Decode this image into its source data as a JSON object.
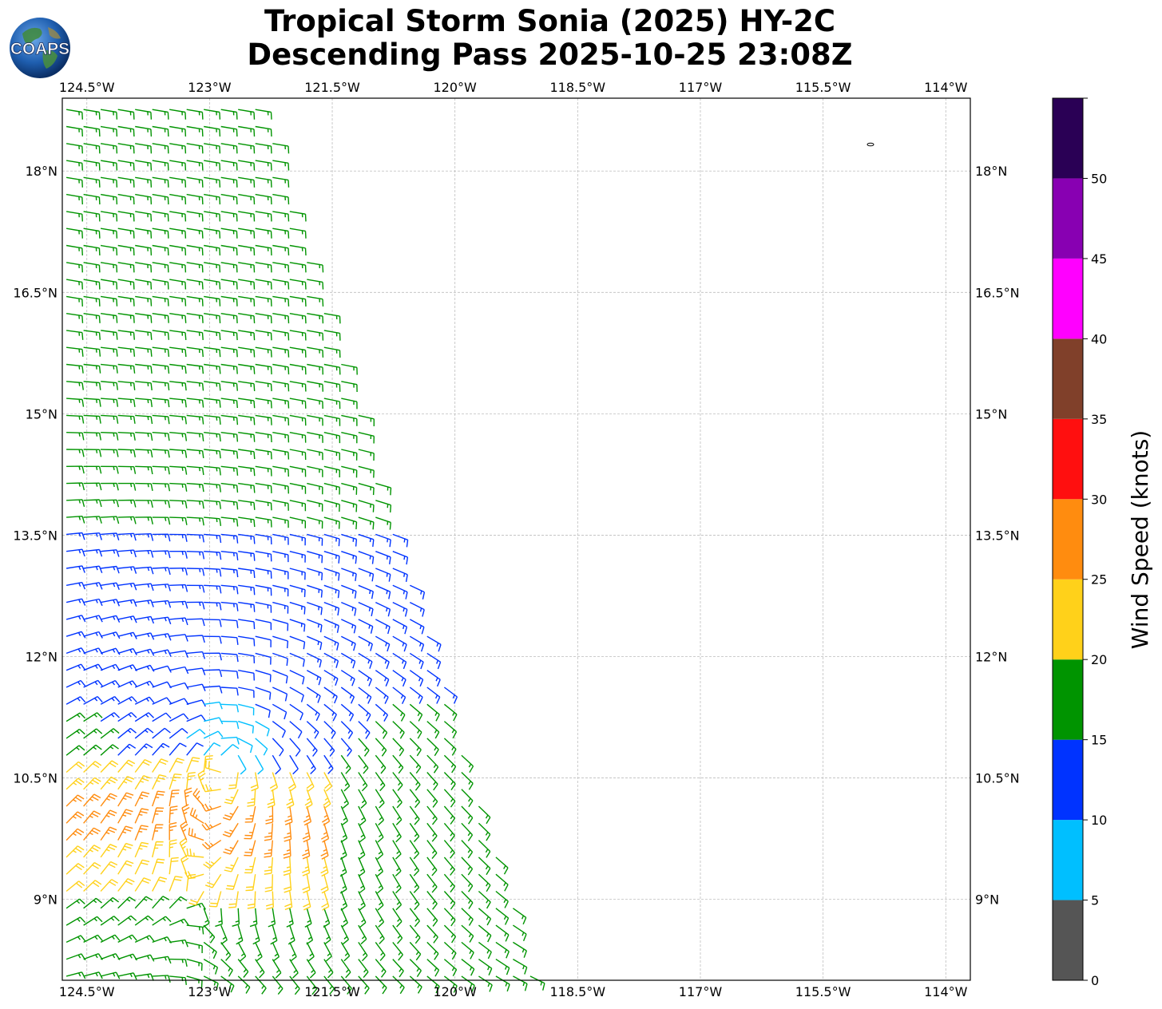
{
  "title": {
    "line1": "Tropical Storm Sonia (2025) HY-2C",
    "line2": "Descending Pass 2025-10-25 23:08Z"
  },
  "logo": {
    "text": "COAPS",
    "icon": "globe-icon"
  },
  "map": {
    "lon_labels": [
      "124.5°W",
      "123°W",
      "121.5°W",
      "120°W",
      "118.5°W",
      "117°W",
      "115.5°W",
      "114°W"
    ],
    "lon_values": [
      -124.5,
      -123,
      -121.5,
      -120,
      -118.5,
      -117,
      -115.5,
      -114
    ],
    "lat_labels": [
      "18°N",
      "16.5°N",
      "15°N",
      "13.5°N",
      "12°N",
      "10.5°N",
      "9°N"
    ],
    "lat_values": [
      18,
      16.5,
      15,
      13.5,
      12,
      10.5,
      9
    ],
    "lon_range": [
      -124.8,
      -113.7
    ],
    "lat_range": [
      8.0,
      18.9
    ],
    "grid": true,
    "storm_center": {
      "lon": -122.8,
      "lat": 10.8
    },
    "swath_east_edge": [
      [
        -122.4,
        18.9
      ],
      [
        -119.0,
        8.0
      ]
    ]
  },
  "colorbar": {
    "label": "Wind Speed (knots)",
    "ticks": [
      "0",
      "5",
      "10",
      "15",
      "20",
      "25",
      "30",
      "35",
      "40",
      "45",
      "50"
    ],
    "bins": [
      {
        "min": 0,
        "max": 5,
        "color": "#555555"
      },
      {
        "min": 5,
        "max": 10,
        "color": "#00bfff"
      },
      {
        "min": 10,
        "max": 15,
        "color": "#0033ff"
      },
      {
        "min": 15,
        "max": 20,
        "color": "#009400"
      },
      {
        "min": 20,
        "max": 25,
        "color": "#ffd11a"
      },
      {
        "min": 25,
        "max": 30,
        "color": "#ff8c0f"
      },
      {
        "min": 30,
        "max": 35,
        "color": "#ff0f0f"
      },
      {
        "min": 35,
        "max": 40,
        "color": "#80402a"
      },
      {
        "min": 40,
        "max": 45,
        "color": "#ff00ff"
      },
      {
        "min": 45,
        "max": 50,
        "color": "#8800b2"
      },
      {
        "min": 50,
        "max": 55,
        "color": "#2a0055"
      }
    ]
  }
}
